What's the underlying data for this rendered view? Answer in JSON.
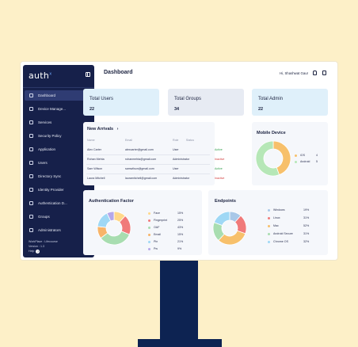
{
  "colors": {
    "sidebar": "#16204a",
    "stand": "#0d2352",
    "background": "#fdf0c8",
    "accent": "#6ea8ff"
  },
  "sidebar": {
    "logo": "auth",
    "logo_mark": "x",
    "items": [
      {
        "label": "Dashboard",
        "icon": "grid-icon",
        "active": true,
        "chevron": false
      },
      {
        "label": "Device Manage...",
        "icon": "monitor-icon",
        "active": false,
        "chevron": true
      },
      {
        "label": "Services",
        "icon": "services-icon",
        "active": false,
        "chevron": false
      },
      {
        "label": "Security Policy",
        "icon": "shield-icon",
        "active": false,
        "chevron": false
      },
      {
        "label": "Application",
        "icon": "apps-icon",
        "active": false,
        "chevron": true
      },
      {
        "label": "Users",
        "icon": "user-icon",
        "active": false,
        "chevron": false
      },
      {
        "label": "Directory Sync",
        "icon": "sync-icon",
        "active": false,
        "chevron": true
      },
      {
        "label": "Identity Provider",
        "icon": "id-icon",
        "active": false,
        "chevron": true
      },
      {
        "label": "Authentication D...",
        "icon": "key-icon",
        "active": false,
        "chevron": true
      },
      {
        "label": "Groups",
        "icon": "group-icon",
        "active": false,
        "chevron": true
      },
      {
        "label": "Administrators",
        "icon": "admin-icon",
        "active": false,
        "chevron": true
      }
    ],
    "footer_line1": "WorkPlace : Lifecourse",
    "footer_line2": "Version : 1.3",
    "help_label": "Help",
    "help_icon": "?"
  },
  "header": {
    "title": "Dashboard",
    "greeting": "Hi, Shashwat Gaur"
  },
  "stats": [
    {
      "title": "Total Users",
      "value": "22"
    },
    {
      "title": "Total Groups",
      "value": "34"
    },
    {
      "title": "Total Admin",
      "value": "22"
    }
  ],
  "arrivals": {
    "title": "New Arrivals",
    "arrow": "›",
    "columns": [
      "Name",
      "Email",
      "Role",
      "Status"
    ],
    "rows": [
      {
        "name": "Alex Carter",
        "email": "alexcarter@gmail.com",
        "role": "User",
        "status": "Active"
      },
      {
        "name": "Rohan Mehta",
        "email": "rohanmehta@gmail.com",
        "role": "Administrator",
        "status": "Inactive"
      },
      {
        "name": "Sam Wilson",
        "email": "samwilson@gmail.com",
        "role": "User",
        "status": "Active"
      },
      {
        "name": "Laura Mitchell",
        "email": "lauramitchell@gmail.com",
        "role": "Administrator",
        "status": "Inactive"
      }
    ]
  },
  "mobile_device": {
    "title": "Mobile Device",
    "legend": [
      {
        "label": "iOS",
        "value": "4",
        "color": "#f7c06b"
      },
      {
        "label": "Android",
        "value": "5",
        "color": "#b6e7b7"
      }
    ]
  },
  "auth_factor": {
    "title": "Authentication Factor",
    "legend": [
      {
        "label": "Face",
        "value": "15%",
        "color": "#ffd88a"
      },
      {
        "label": "Fingerprint",
        "value": "25%",
        "color": "#f07a7a"
      },
      {
        "label": "OAF",
        "value": "43%",
        "color": "#a8ddb0"
      },
      {
        "label": "Email",
        "value": "15%",
        "color": "#f7b469"
      },
      {
        "label": "Pin",
        "value": "21%",
        "color": "#9fd8f5"
      },
      {
        "label": "Pw",
        "value": "9%",
        "color": "#b5a8ea"
      }
    ]
  },
  "endpoints": {
    "title": "Endpoints",
    "legend": [
      {
        "label": "Windows",
        "value": "19%",
        "color": "#a9c8e8"
      },
      {
        "label": "Linux",
        "value": "31%",
        "color": "#f07a7a"
      },
      {
        "label": "Mac",
        "value": "52%",
        "color": "#f7c06b"
      },
      {
        "label": "Android Secure",
        "value": "31%",
        "color": "#a8ddb0"
      },
      {
        "label": "Chrome OS",
        "value": "32%",
        "color": "#9fd8f5"
      }
    ]
  },
  "chart_data": [
    {
      "type": "pie",
      "title": "Mobile Device",
      "categories": [
        "iOS",
        "Android"
      ],
      "values": [
        4,
        5
      ],
      "colors": [
        "#f7c06b",
        "#b6e7b7"
      ]
    },
    {
      "type": "pie",
      "title": "Authentication Factor",
      "categories": [
        "Face",
        "Fingerprint",
        "OAF",
        "Email",
        "Pin",
        "Pw"
      ],
      "values": [
        15,
        25,
        43,
        15,
        21,
        9
      ],
      "colors": [
        "#ffd88a",
        "#f07a7a",
        "#a8ddb0",
        "#f7b469",
        "#9fd8f5",
        "#b5a8ea"
      ]
    },
    {
      "type": "pie",
      "title": "Endpoints",
      "categories": [
        "Windows",
        "Linux",
        "Mac",
        "Android Secure",
        "Chrome OS"
      ],
      "values": [
        19,
        31,
        52,
        31,
        32
      ],
      "colors": [
        "#a9c8e8",
        "#f07a7a",
        "#f7c06b",
        "#a8ddb0",
        "#9fd8f5"
      ]
    }
  ]
}
